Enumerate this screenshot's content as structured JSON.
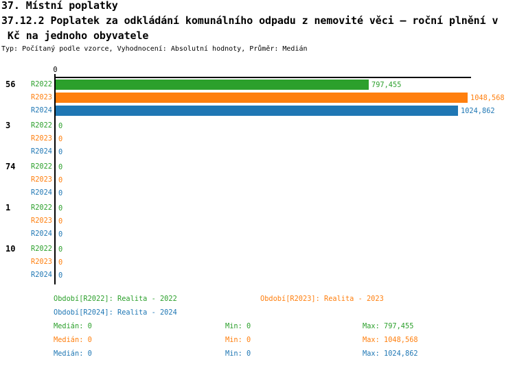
{
  "header": {
    "title_line1": "37. Místní poplatky",
    "title_line2": "37.12.2 Poplatek za odkládání komunálního odpadu z nemovité věci – roční plnění v",
    "title_line3": " Kč na jednoho obyvatele",
    "meta": "Typ: Počítaný podle vzorce, Vyhodnocení: Absolutní hodnoty, Průměr: Medián"
  },
  "colors": {
    "R2022": "#2CA02C",
    "R2023": "#FF7F0E",
    "R2024": "#1F77B4",
    "axis": "#000000"
  },
  "chart_data": {
    "type": "bar",
    "orientation": "horizontal",
    "axis_tick_label": "0",
    "xlim": [
      0,
      1048.568
    ],
    "grid": false,
    "series_labels": [
      "R2022",
      "R2023",
      "R2024"
    ],
    "groups": [
      {
        "label": "56",
        "values": [
          797.455,
          1048.568,
          1024.862
        ],
        "value_labels": [
          "797,455",
          "1048,568",
          "1024,862"
        ]
      },
      {
        "label": "3",
        "values": [
          0,
          0,
          0
        ],
        "value_labels": [
          "0",
          "0",
          "0"
        ]
      },
      {
        "label": "74",
        "values": [
          0,
          0,
          0
        ],
        "value_labels": [
          "0",
          "0",
          "0"
        ]
      },
      {
        "label": "1",
        "values": [
          0,
          0,
          0
        ],
        "value_labels": [
          "0",
          "0",
          "0"
        ]
      },
      {
        "label": "10",
        "values": [
          0,
          0,
          0
        ],
        "value_labels": [
          "0",
          "0",
          "0"
        ]
      }
    ]
  },
  "legend": [
    {
      "series": "R2022",
      "label": "Období[R2022]: Realita - 2022"
    },
    {
      "series": "R2023",
      "label": "Období[R2023]: Realita - 2023"
    },
    {
      "series": "R2024",
      "label": "Období[R2024]: Realita - 2024"
    }
  ],
  "stats": [
    {
      "series": "R2022",
      "median": "Medián: 0",
      "min": "Min: 0",
      "max": "Max: 797,455"
    },
    {
      "series": "R2023",
      "median": "Medián: 0",
      "min": "Min: 0",
      "max": "Max: 1048,568"
    },
    {
      "series": "R2024",
      "median": "Medián: 0",
      "min": "Min: 0",
      "max": "Max: 1024,862"
    }
  ]
}
